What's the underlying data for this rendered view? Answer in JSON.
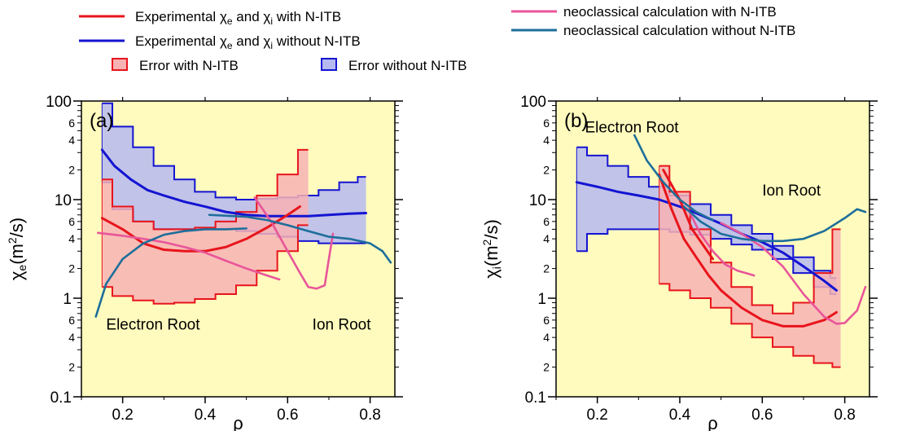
{
  "legend": {
    "items": [
      {
        "key": "exp_with",
        "kind": "line",
        "color": "#e8141c",
        "label": "Experimental χe and χi with N-ITB"
      },
      {
        "key": "exp_without",
        "kind": "line",
        "color": "#1414d2",
        "label": "Experimental χe and χi without N-ITB"
      },
      {
        "key": "err_with",
        "kind": "box",
        "color": "#e8141c",
        "fill": "#f7b2b4",
        "label": "Error with N-ITB"
      },
      {
        "key": "err_without",
        "kind": "box",
        "color": "#1414d2",
        "fill": "#b6b8f0",
        "label": "Error without N-ITB"
      },
      {
        "key": "neo_with",
        "kind": "line",
        "color": "#e8559a",
        "label": "neoclassical calculation with N-ITB"
      },
      {
        "key": "neo_without",
        "kind": "line",
        "color": "#1d6e9b",
        "label": "neoclassical calculation without N-ITB"
      }
    ]
  },
  "colors": {
    "plot_bg": "#fffbbe",
    "exp_with": "#e8141c",
    "exp_without": "#1414d2",
    "err_with_fill": "#f7b2b4",
    "err_without_fill": "#b6b8f0",
    "neo_with": "#e8559a",
    "neo_without": "#1d6e9b"
  },
  "chart_data": [
    {
      "type": "line",
      "panel_label": "(a)",
      "xlabel": "ρ",
      "ylabel": "χe(m²/s)",
      "ylabel_parts": {
        "sym": "χ",
        "sub": "e",
        "unit": "(m",
        "sup": "2",
        "tail": "/s)"
      },
      "xlim": [
        0.1,
        0.86
      ],
      "ylim": [
        0.1,
        100
      ],
      "yscale": "log",
      "x_ticks": [
        0.2,
        0.4,
        0.6,
        0.8
      ],
      "x_tick_labels": [
        "0.2",
        "0.4",
        "0.6",
        "0.8"
      ],
      "y_ticks": [
        0.1,
        1,
        10,
        100
      ],
      "y_tick_labels": [
        "0.1",
        "1",
        "10",
        "100"
      ],
      "y_minor_labels": [
        "2",
        "4",
        "6",
        "2",
        "4",
        "6",
        "2",
        "4",
        "6"
      ],
      "annotations": [
        {
          "text": "Electron Root",
          "x": 0.16,
          "y": 0.48
        },
        {
          "text": "Ion Root",
          "x": 0.66,
          "y": 0.48
        }
      ],
      "error_bands": [
        {
          "series": "err_without",
          "x": [
            0.15,
            0.2,
            0.25,
            0.3,
            0.35,
            0.4,
            0.45,
            0.5,
            0.55,
            0.6,
            0.65,
            0.7,
            0.75,
            0.79
          ],
          "upper": [
            95,
            55,
            34,
            22,
            16,
            12,
            10.5,
            10,
            10.2,
            10.5,
            11,
            12.5,
            15,
            17
          ],
          "lower": [
            15,
            8,
            6,
            5,
            5,
            5,
            5,
            4.8,
            4.5,
            4.2,
            3.8,
            3.6,
            3.6,
            3.6
          ]
        },
        {
          "series": "err_with",
          "x": [
            0.15,
            0.2,
            0.25,
            0.3,
            0.35,
            0.4,
            0.45,
            0.5,
            0.55,
            0.6,
            0.65
          ],
          "upper": [
            16,
            8.5,
            6,
            5,
            5,
            5.2,
            6,
            7.5,
            11,
            18,
            32
          ],
          "lower": [
            1.3,
            1.05,
            0.95,
            0.88,
            0.9,
            0.98,
            1.1,
            1.35,
            1.9,
            3,
            5.5
          ]
        }
      ],
      "series": [
        {
          "key": "exp_without",
          "x": [
            0.15,
            0.18,
            0.22,
            0.26,
            0.3,
            0.35,
            0.4,
            0.45,
            0.5,
            0.55,
            0.6,
            0.65,
            0.7,
            0.75,
            0.79
          ],
          "y": [
            32,
            22,
            16,
            12.5,
            11,
            9.5,
            8.5,
            7.5,
            7,
            6.8,
            6.8,
            6.8,
            7,
            7.2,
            7.3
          ]
        },
        {
          "key": "exp_with",
          "x": [
            0.15,
            0.2,
            0.25,
            0.3,
            0.35,
            0.4,
            0.45,
            0.5,
            0.55,
            0.6,
            0.63
          ],
          "y": [
            6.5,
            5,
            3.6,
            3.1,
            3,
            3,
            3.3,
            4,
            5.2,
            7,
            8.5
          ]
        },
        {
          "key": "neo_with",
          "x": [
            0.14,
            0.2,
            0.25,
            0.3,
            0.35,
            0.4,
            0.45,
            0.5,
            0.55,
            0.58
          ],
          "y": [
            4.6,
            4.3,
            4,
            3.7,
            3.3,
            2.9,
            2.4,
            2,
            1.7,
            1.55
          ]
        },
        {
          "key": "neo_with",
          "x": [
            0.52,
            0.56,
            0.6,
            0.63,
            0.65,
            0.67,
            0.69,
            0.7,
            0.71
          ],
          "y": [
            10.5,
            6,
            3,
            1.8,
            1.3,
            1.25,
            1.35,
            2.5,
            4.5
          ]
        },
        {
          "key": "neo_without",
          "x": [
            0.135,
            0.16,
            0.2,
            0.25,
            0.3,
            0.35,
            0.4,
            0.45,
            0.5
          ],
          "y": [
            0.65,
            1.4,
            2.5,
            3.6,
            4.4,
            4.8,
            5,
            5,
            5.1
          ]
        },
        {
          "key": "neo_without",
          "x": [
            0.41,
            0.5,
            0.55,
            0.6,
            0.65,
            0.7,
            0.75,
            0.8,
            0.83,
            0.85
          ],
          "y": [
            7,
            6.7,
            6.2,
            5.5,
            4.8,
            4.2,
            4,
            3.6,
            3,
            2.3
          ]
        }
      ]
    },
    {
      "type": "line",
      "panel_label": "(b)",
      "xlabel": "ρ",
      "ylabel": "χi(m²/s)",
      "ylabel_parts": {
        "sym": "χ",
        "sub": "i",
        "unit": "(m",
        "sup": "2",
        "tail": "/s)"
      },
      "xlim": [
        0.1,
        0.86
      ],
      "ylim": [
        0.1,
        100
      ],
      "yscale": "log",
      "x_ticks": [
        0.2,
        0.4,
        0.6,
        0.8
      ],
      "x_tick_labels": [
        "0.2",
        "0.4",
        "0.6",
        "0.8"
      ],
      "y_ticks": [
        0.1,
        1,
        10,
        100
      ],
      "y_tick_labels": [
        "0.1",
        "1",
        "10",
        "100"
      ],
      "y_minor_labels": [
        "2",
        "4",
        "6",
        "2",
        "4",
        "6",
        "2",
        "4",
        "6"
      ],
      "annotations": [
        {
          "text": "Electron Root",
          "x": 0.17,
          "y": 48
        },
        {
          "text": "Ion Root",
          "x": 0.6,
          "y": 11
        }
      ],
      "error_bands": [
        {
          "series": "err_without",
          "x": [
            0.15,
            0.2,
            0.25,
            0.3,
            0.35,
            0.4,
            0.45,
            0.5,
            0.55,
            0.6,
            0.65,
            0.7,
            0.75,
            0.78
          ],
          "upper": [
            34,
            28,
            22,
            17,
            13.5,
            11,
            9,
            7,
            5.5,
            4.5,
            3.4,
            2.6,
            1.9,
            1.6
          ],
          "lower": [
            3,
            4.5,
            5,
            5,
            5,
            4.7,
            4.4,
            4,
            3.5,
            3.1,
            2.5,
            1.8,
            1.3,
            1.1
          ]
        },
        {
          "series": "err_with",
          "x": [
            0.35,
            0.4,
            0.45,
            0.5,
            0.55,
            0.6,
            0.65,
            0.7,
            0.75,
            0.79
          ],
          "upper": [
            22,
            12,
            5,
            2.3,
            1.3,
            0.85,
            0.7,
            0.9,
            1.8,
            5
          ],
          "lower": [
            1.4,
            1.2,
            1,
            0.8,
            0.55,
            0.4,
            0.32,
            0.26,
            0.22,
            0.2
          ]
        }
      ],
      "series": [
        {
          "key": "exp_without",
          "x": [
            0.15,
            0.2,
            0.25,
            0.3,
            0.35,
            0.4,
            0.45,
            0.5,
            0.55,
            0.6,
            0.65,
            0.7,
            0.75,
            0.78
          ],
          "y": [
            15,
            13.5,
            12,
            11,
            10,
            8.5,
            7,
            5.7,
            4.5,
            3.7,
            2.9,
            2.1,
            1.5,
            1.2
          ]
        },
        {
          "key": "exp_with",
          "x": [
            0.35,
            0.38,
            0.41,
            0.44,
            0.47,
            0.5,
            0.55,
            0.6,
            0.65,
            0.7,
            0.75,
            0.78
          ],
          "y": [
            18,
            8,
            4,
            2.6,
            1.7,
            1.2,
            0.8,
            0.6,
            0.52,
            0.52,
            0.6,
            0.72
          ]
        },
        {
          "key": "exp_with",
          "x": [
            0.36,
            0.4,
            0.43,
            0.46,
            0.48
          ],
          "y": [
            20,
            10,
            5,
            3.3,
            2.5
          ]
        },
        {
          "key": "neo_with",
          "x": [
            0.42,
            0.45,
            0.48,
            0.51,
            0.54,
            0.56,
            0.58
          ],
          "y": [
            8,
            4.5,
            3,
            2.2,
            1.9,
            1.8,
            1.7
          ]
        },
        {
          "key": "neo_with",
          "x": [
            0.5,
            0.55,
            0.6,
            0.65,
            0.7,
            0.75,
            0.78,
            0.8,
            0.83,
            0.85
          ],
          "y": [
            5.8,
            4.5,
            3.3,
            2.1,
            1.1,
            0.65,
            0.55,
            0.56,
            0.75,
            1.3
          ]
        },
        {
          "key": "neo_without",
          "x": [
            0.29,
            0.32,
            0.36,
            0.4,
            0.44,
            0.48
          ],
          "y": [
            45,
            25,
            15,
            10,
            7.5,
            6.2
          ]
        },
        {
          "key": "neo_without",
          "x": [
            0.41,
            0.45,
            0.5,
            0.55,
            0.6,
            0.65,
            0.7,
            0.75,
            0.8,
            0.83,
            0.85
          ],
          "y": [
            8.5,
            6,
            4.5,
            4,
            3.8,
            3.8,
            4,
            4.8,
            6.5,
            8,
            7.5
          ]
        }
      ]
    }
  ]
}
